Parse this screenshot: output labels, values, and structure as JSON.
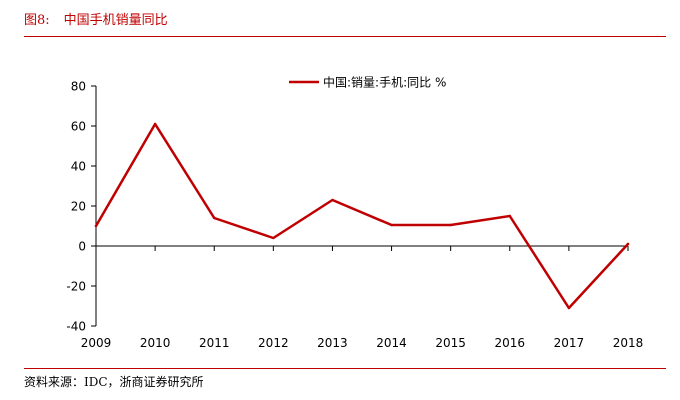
{
  "figure": {
    "number": "图8:",
    "title": "中国手机销量同比"
  },
  "source_note": "资料来源：IDC，浙商证券研究所",
  "colors": {
    "accent": "#c00000",
    "axis": "#000000",
    "text": "#000000"
  },
  "chart_data": {
    "type": "line",
    "title": "中国手机销量同比",
    "xlabel": "",
    "ylabel": "",
    "categories": [
      "2009",
      "2010",
      "2011",
      "2012",
      "2013",
      "2014",
      "2015",
      "2016",
      "2017",
      "2018"
    ],
    "series": [
      {
        "name": "中国:销量:手机:同比 %",
        "values": [
          10,
          61,
          14,
          4,
          23,
          10.5,
          10.5,
          15,
          -31,
          1
        ],
        "color": "#c00000"
      }
    ],
    "ylim": [
      -40,
      80
    ],
    "yticks": [
      "80",
      "60",
      "40",
      "20",
      "0",
      "-20",
      "-40"
    ],
    "legend_position": "top-center",
    "grid": false
  }
}
